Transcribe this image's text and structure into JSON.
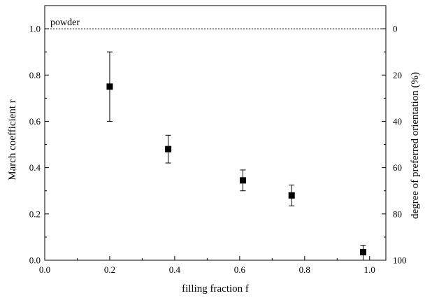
{
  "chart_data": {
    "type": "scatter",
    "title": "",
    "xlabel": "filling fraction f",
    "ylabel": "March coefficient r",
    "y2label": "degree of preferred orientation (%)",
    "xlim": [
      0.0,
      1.05
    ],
    "ylim": [
      0.0,
      1.1
    ],
    "y2lim": [
      100,
      -10
    ],
    "x_ticks": [
      0.0,
      0.2,
      0.4,
      0.6,
      0.8,
      1.0
    ],
    "x_tick_labels": [
      "0.0",
      "0.2",
      "0.4",
      "0.6",
      "0.8",
      "1.0"
    ],
    "y_ticks": [
      0.0,
      0.2,
      0.4,
      0.6,
      0.8,
      1.0
    ],
    "y_tick_labels": [
      "0.0",
      "0.2",
      "0.4",
      "0.6",
      "0.8",
      "1.0"
    ],
    "y2_ticks": [
      0,
      20,
      40,
      60,
      80,
      100
    ],
    "y2_tick_labels": [
      "0",
      "20",
      "40",
      "60",
      "80",
      "100"
    ],
    "grid": false,
    "marker_color": "#000000",
    "series": [
      {
        "x": [
          0.2,
          0.38,
          0.61,
          0.76,
          0.98
        ],
        "y": [
          0.75,
          0.48,
          0.345,
          0.28,
          0.035
        ],
        "yerr_low": [
          0.6,
          0.42,
          0.3,
          0.235,
          0.0
        ],
        "yerr_high": [
          0.9,
          0.54,
          0.39,
          0.325,
          0.065
        ]
      }
    ],
    "reference_line": {
      "y": 1.0,
      "style": "dotted",
      "label": "powder"
    }
  }
}
